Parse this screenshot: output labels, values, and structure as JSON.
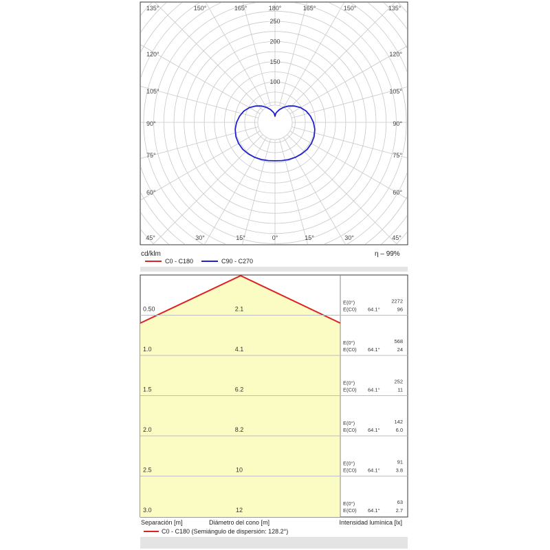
{
  "chart_data": [
    {
      "type": "polar",
      "unit_label": "cd/klm",
      "radial_ticks": [
        100,
        150,
        200,
        250
      ],
      "rlim": [
        0,
        250
      ],
      "angle_ticks_top": [
        "135°",
        "150°",
        "165°",
        "180°",
        "165°",
        "150°",
        "135°"
      ],
      "angle_ticks_left": [
        "120°",
        "105°",
        "90°",
        "75°",
        "60°"
      ],
      "angle_ticks_right": [
        "120°",
        "105°",
        "90°",
        "75°",
        "60°"
      ],
      "angle_ticks_bottom": [
        "45°",
        "30°",
        "15°",
        "0°",
        "15°",
        "30°",
        "45°"
      ],
      "grid": true,
      "efficiency_label": "η",
      "efficiency_value": "99%",
      "legend": [
        {
          "name": "C0 - C180",
          "color": "#e02020"
        },
        {
          "name": "C90 - C270",
          "color": "#1f1fd0"
        }
      ],
      "series": [
        {
          "name": "C90 - C270",
          "color": "#1f1fd0",
          "gamma_deg": [
            0,
            10,
            20,
            30,
            40,
            50,
            60,
            70,
            80,
            90,
            100,
            110,
            120,
            130,
            140,
            150,
            160,
            170,
            175,
            180
          ],
          "intensity": [
            95,
            96,
            98,
            100,
            102,
            104,
            104,
            103,
            100,
            95,
            89,
            82,
            73,
            63,
            53,
            43,
            34,
            26,
            22,
            15
          ]
        }
      ]
    },
    {
      "type": "table",
      "rows": [
        {
          "separation": "0.50",
          "diameter": "2.1",
          "e0_label": "E(0°)",
          "ec0_label": "E(C0)",
          "angle": "64.1°",
          "e0": "2272",
          "ec0": "96"
        },
        {
          "separation": "1.0",
          "diameter": "4.1",
          "e0_label": "E(0°)",
          "ec0_label": "E(C0)",
          "angle": "64.1°",
          "e0": "568",
          "ec0": "24"
        },
        {
          "separation": "1.5",
          "diameter": "6.2",
          "e0_label": "E(0°)",
          "ec0_label": "E(C0)",
          "angle": "64.1°",
          "e0": "252",
          "ec0": "11"
        },
        {
          "separation": "2.0",
          "diameter": "8.2",
          "e0_label": "E(0°)",
          "ec0_label": "E(C0)",
          "angle": "64.1°",
          "e0": "142",
          "ec0": "6.0"
        },
        {
          "separation": "2.5",
          "diameter": "10",
          "e0_label": "E(0°)",
          "ec0_label": "E(C0)",
          "angle": "64.1°",
          "e0": "91",
          "ec0": "3.8"
        },
        {
          "separation": "3.0",
          "diameter": "12",
          "e0_label": "E(0°)",
          "ec0_label": "E(C0)",
          "angle": "64.1°",
          "e0": "63",
          "ec0": "2.7"
        }
      ],
      "footer": {
        "col1": "Separación [m]",
        "col2": "Diámetro del cono [m]",
        "col3": "Intensidad lumínica [lx]"
      },
      "legend": {
        "name": "C0 - C180 (Semiángulo de dispersión: 128.2°)",
        "color": "#e02020"
      },
      "fill_color": "#fbfbc4"
    }
  ]
}
